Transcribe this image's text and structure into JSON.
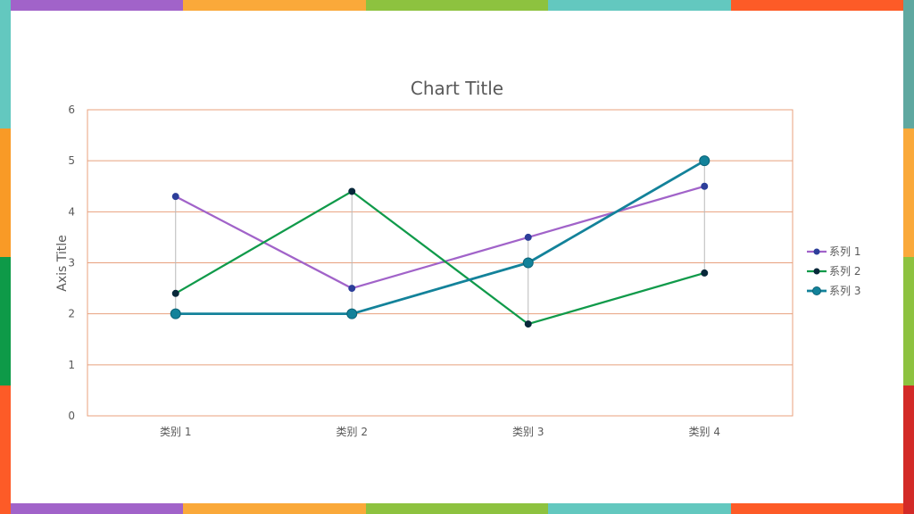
{
  "frame": {
    "top": [
      "#a163c9",
      "#faa93a",
      "#8dc23f",
      "#63c8bf",
      "#fd5b27"
    ],
    "bottom": [
      "#a163c9",
      "#faa93a",
      "#8dc23f",
      "#63c8bf",
      "#fd5b27"
    ],
    "left": [
      "#63c8bf",
      "#f99a26",
      "#0e9a48",
      "#fd5b27"
    ],
    "right": [
      "#5fa8a0",
      "#faa93a",
      "#8dc23f",
      "#d32a27"
    ]
  },
  "chart_data": {
    "type": "line",
    "title": "Chart Title",
    "ylabel": "Axis Title",
    "xlabel": "",
    "categories": [
      "类别 1",
      "类别 2",
      "类别 3",
      "类别 4"
    ],
    "ylim": [
      0,
      6
    ],
    "yticks": [
      0,
      1,
      2,
      3,
      4,
      5,
      6
    ],
    "grid": true,
    "legend_position": "right",
    "drop_lines": true,
    "series": [
      {
        "name": "系列 1",
        "values": [
          4.3,
          2.5,
          3.5,
          4.5
        ],
        "color": "#a163c9",
        "marker": "#2d3f9a"
      },
      {
        "name": "系列 2",
        "values": [
          2.4,
          4.4,
          1.8,
          2.8
        ],
        "color": "#109a4a",
        "marker": "#08283a"
      },
      {
        "name": "系列 3",
        "values": [
          2.0,
          2.0,
          3.0,
          5.0
        ],
        "color": "#13829a",
        "marker": "#13829a"
      }
    ],
    "colors": {
      "grid": "#e8a07e",
      "axis_text": "#595959",
      "title_text": "#595959"
    }
  }
}
